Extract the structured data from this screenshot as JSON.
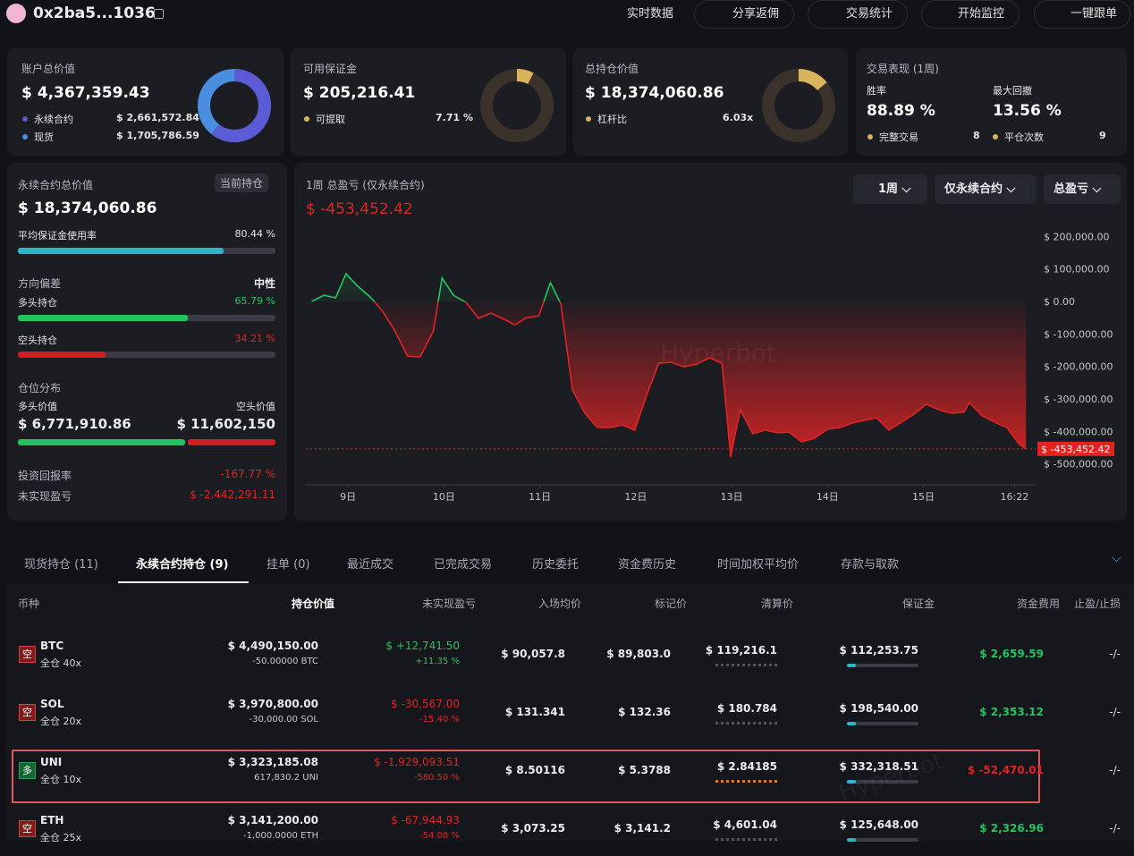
{
  "header": {
    "address": "0x2ba5...1036",
    "buttons": [
      "实时数据",
      "分享返佣",
      "交易统计",
      "开始监控",
      "一键跟单"
    ]
  },
  "summary": {
    "account": {
      "title": "账户总价值",
      "value": "$ 4,367,359.43",
      "items": [
        {
          "label": "永续合约",
          "value": "$ 2,661,572.84"
        },
        {
          "label": "现货",
          "value": "$ 1,705,786.59"
        }
      ]
    },
    "margin": {
      "title": "可用保证金",
      "value": "$ 205,216.41",
      "items": [
        {
          "label": "可提取",
          "value": "7.71 %"
        }
      ]
    },
    "positions": {
      "title": "总持仓价值",
      "value": "$ 18,374,060.86",
      "items": [
        {
          "label": "杠杆比",
          "value": "6.03x"
        }
      ]
    },
    "performance": {
      "title": "交易表现 (1周)",
      "win_rate_label": "胜率",
      "win_rate": "88.89 %",
      "drawdown_label": "最大回撤",
      "drawdown": "13.56 %",
      "items": [
        {
          "label": "完整交易",
          "value": "8"
        },
        {
          "label": "平仓次数",
          "value": "9"
        }
      ]
    }
  },
  "perp_panel": {
    "title": "永续合约总价值",
    "tag": "当前持仓",
    "value": "$ 18,374,060.86",
    "usage_label": "平均保证金使用率",
    "usage": "80.44 %",
    "bias_label": "方向偏差",
    "bias": "中性",
    "long_label": "多头持仓",
    "long": "65.79 %",
    "short_label": "空头持仓",
    "short": "34.21 %",
    "dist_label": "仓位分布",
    "long_value_label": "多头价值",
    "short_value_label": "空头价值",
    "long_value": "$ 6,771,910.86",
    "short_value": "$ 11,602,150",
    "roi_label": "投资回报率",
    "roi": "-167.77 %",
    "upnl_label": "未实现盈亏",
    "upnl": "$ -2,442,291.11"
  },
  "pnl_chart": {
    "type": "area",
    "title": "1周 总盈亏 (仅永续合约)",
    "value": "$ -453,452.42",
    "controls": [
      "1周",
      "仅永续合约",
      "总盈亏"
    ],
    "watermark": "Hyperbot",
    "x": [
      8.62,
      8.75,
      8.87,
      8.98,
      9.1,
      9.24,
      9.36,
      9.49,
      9.62,
      9.75,
      9.89,
      9.98,
      10.1,
      10.23,
      10.36,
      10.49,
      10.61,
      10.74,
      10.86,
      10.99,
      11.11,
      11.22,
      11.34,
      11.47,
      11.6,
      11.73,
      11.86,
      11.99,
      12.12,
      12.24,
      12.37,
      12.5,
      12.63,
      12.77,
      12.9,
      12.99,
      13.09,
      13.22,
      13.35,
      13.48,
      13.6,
      13.73,
      13.86,
      14.0,
      14.13,
      14.26,
      14.38,
      14.51,
      14.64,
      14.77,
      14.9,
      15.03,
      15.16,
      15.29,
      15.42,
      15.48,
      15.61,
      15.74,
      15.87,
      16.0,
      16.07
    ],
    "values": [
      0,
      19000,
      11000,
      85000,
      47000,
      11000,
      -30000,
      -91000,
      -168000,
      -171000,
      -91000,
      72000,
      19000,
      -3000,
      -52000,
      -36000,
      -52000,
      -72000,
      -50000,
      -44000,
      58000,
      -8000,
      -272000,
      -344000,
      -388000,
      -388000,
      -380000,
      -396000,
      -283000,
      -190000,
      -187000,
      -201000,
      -193000,
      -173000,
      -190000,
      -479000,
      -333000,
      -407000,
      -396000,
      -404000,
      -402000,
      -432000,
      -421000,
      -393000,
      -388000,
      -374000,
      -366000,
      -358000,
      -396000,
      -371000,
      -347000,
      -316000,
      -333000,
      -344000,
      -341000,
      -311000,
      -352000,
      -371000,
      -388000,
      -440000,
      -453452.42
    ],
    "last_value_label": "$ -453,452.42",
    "xlim": [
      8.56,
      16.17
    ],
    "ylim": [
      -564000,
      225600
    ],
    "xticks": [
      {
        "value": 9,
        "label": "9日"
      },
      {
        "value": 10,
        "label": "10日"
      },
      {
        "value": 11,
        "label": "11日"
      },
      {
        "value": 12,
        "label": "12日"
      },
      {
        "value": 13,
        "label": "13日"
      },
      {
        "value": 14,
        "label": "14日"
      },
      {
        "value": 15,
        "label": "15日"
      },
      {
        "value": 15.95,
        "label": "16:22"
      }
    ],
    "yticks": [
      {
        "value": 200000,
        "label": "$ 200,000.00"
      },
      {
        "value": 100000,
        "label": "$ 100,000.00"
      },
      {
        "value": 0,
        "label": "$ 0.00"
      },
      {
        "value": -100000,
        "label": "$ -100,000.00"
      },
      {
        "value": -200000,
        "label": "$ -200,000.00"
      },
      {
        "value": -300000,
        "label": "$ -300,000.00"
      },
      {
        "value": -400000,
        "label": "$ -400,000.00"
      },
      {
        "value": -500000,
        "label": "$ -500,000.00"
      }
    ],
    "up_color": "#22c55e",
    "down_color": "#e02424",
    "grid": false
  },
  "tabs": {
    "items": [
      "现货持仓 (11)",
      "永续合约持仓 (9)",
      "挂单 (0)",
      "最近成交",
      "已完成交易",
      "历史委托",
      "资金费历史",
      "时间加权平均价",
      "存款与取款"
    ],
    "active": 1
  },
  "table": {
    "columns": [
      "币种",
      "持仓价值",
      "未实现盈亏",
      "入场均价",
      "标记价",
      "清算价",
      "保证金",
      "资金费用",
      "止盈/止损"
    ],
    "rows": [
      {
        "side": "空",
        "side_color": "#7f1d1d",
        "symbol": "BTC",
        "mode": "全仓 40x",
        "value": "$ 4,490,150.00",
        "size": "-50.00000 BTC",
        "pnl": "$ +12,741.50",
        "pnl_pct": "+11.35 %",
        "entry": "$ 90,057.8",
        "mark": "$ 89,803.0",
        "liq": "$ 119,216.1",
        "margin": "$ 112,253.75",
        "funding": "$ 2,659.59",
        "tpsl": "-/-",
        "highlight": false
      },
      {
        "side": "空",
        "side_color": "#7f1d1d",
        "symbol": "SOL",
        "mode": "全仓 20x",
        "value": "$ 3,970,800.00",
        "size": "-30,000.00 SOL",
        "pnl": "$ -30,567.00",
        "pnl_pct": "-15.40 %",
        "entry": "$ 131.341",
        "mark": "$ 132.36",
        "liq": "$ 180.784",
        "margin": "$ 198,540.00",
        "funding": "$ 2,353.12",
        "tpsl": "-/-",
        "highlight": false
      },
      {
        "side": "多",
        "side_color": "#166534",
        "symbol": "UNI",
        "mode": "全仓 10x",
        "value": "$ 3,323,185.08",
        "size": "617,830.2 UNI",
        "pnl": "$ -1,929,093.51",
        "pnl_pct": "-580.50 %",
        "entry": "$ 8.50116",
        "mark": "$ 5.3788",
        "liq": "$ 2.84185",
        "margin": "$ 332,318.51",
        "funding": "$ -52,470.01",
        "tpsl": "-/-",
        "highlight": true
      },
      {
        "side": "空",
        "side_color": "#7f1d1d",
        "symbol": "ETH",
        "mode": "全仓 25x",
        "value": "$ 3,141,200.00",
        "size": "-1,000.0000 ETH",
        "pnl": "$ -67,944.93",
        "pnl_pct": "-54.08 %",
        "entry": "$ 3,073.25",
        "mark": "$ 3,141.2",
        "liq": "$ 4,601.04",
        "margin": "$ 125,648.00",
        "funding": "$ 2,326.96",
        "tpsl": "-/-",
        "highlight": false
      }
    ]
  }
}
